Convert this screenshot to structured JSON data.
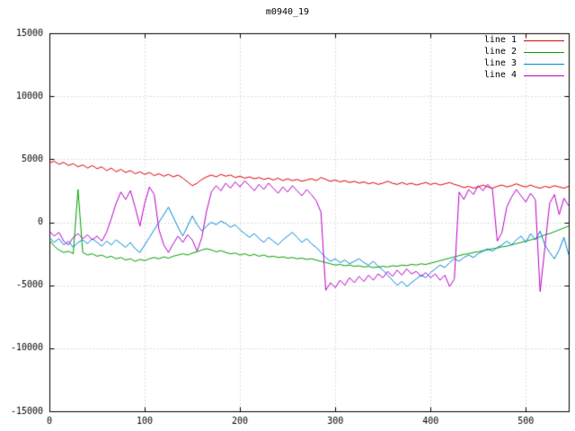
{
  "chart_data": {
    "type": "line",
    "title": "m0940_19",
    "xlabel": "",
    "ylabel": "",
    "xlim": [
      0,
      545
    ],
    "ylim": [
      -15000,
      15000
    ],
    "xticks": [
      0,
      100,
      200,
      300,
      400,
      500
    ],
    "yticks": [
      -15000,
      -10000,
      -5000,
      0,
      5000,
      10000,
      15000
    ],
    "grid": true,
    "grid_style": "dotted",
    "grid_color": "#b8b8b8",
    "border_color": "#000000",
    "background_color": "#ffffff",
    "legend_position": "top-right",
    "x_step": 5,
    "series": [
      {
        "name": "line 1",
        "color": "#dd0000",
        "values": [
          4700,
          4850,
          4600,
          4750,
          4500,
          4650,
          4400,
          4550,
          4300,
          4500,
          4250,
          4400,
          4100,
          4300,
          4000,
          4200,
          3950,
          4100,
          3850,
          4000,
          3800,
          3950,
          3700,
          3850,
          3650,
          3800,
          3600,
          3750,
          3500,
          3200,
          2900,
          3100,
          3400,
          3600,
          3750,
          3600,
          3800,
          3650,
          3750,
          3550,
          3650,
          3500,
          3600,
          3450,
          3550,
          3400,
          3500,
          3350,
          3500,
          3300,
          3450,
          3300,
          3400,
          3250,
          3350,
          3450,
          3300,
          3550,
          3400,
          3250,
          3350,
          3200,
          3300,
          3150,
          3250,
          3100,
          3200,
          3050,
          3150,
          3000,
          3100,
          3250,
          3100,
          3000,
          3150,
          3000,
          3100,
          2950,
          3050,
          3150,
          3000,
          3100,
          2950,
          3050,
          3150,
          3000,
          2900,
          2750,
          2850,
          2700,
          2800,
          2950,
          2800,
          2700,
          2850,
          2950,
          2800,
          2900,
          3050,
          2900,
          2800,
          2950,
          2800,
          2700,
          2850,
          2750,
          2900,
          2800,
          2700,
          2850
        ]
      },
      {
        "name": "line 2",
        "color": "#00a000",
        "values": [
          -1400,
          -1900,
          -2200,
          -2400,
          -2300,
          -2500,
          2600,
          -2400,
          -2600,
          -2500,
          -2700,
          -2600,
          -2800,
          -2700,
          -2900,
          -2800,
          -3000,
          -2900,
          -3100,
          -2950,
          -3050,
          -2900,
          -2800,
          -2900,
          -2750,
          -2850,
          -2700,
          -2600,
          -2500,
          -2600,
          -2450,
          -2350,
          -2200,
          -2100,
          -2200,
          -2350,
          -2250,
          -2400,
          -2500,
          -2450,
          -2600,
          -2500,
          -2650,
          -2550,
          -2700,
          -2600,
          -2750,
          -2700,
          -2800,
          -2750,
          -2850,
          -2800,
          -2900,
          -2850,
          -2950,
          -2900,
          -3000,
          -3100,
          -3200,
          -3300,
          -3400,
          -3350,
          -3450,
          -3400,
          -3500,
          -3450,
          -3550,
          -3500,
          -3600,
          -3550,
          -3500,
          -3550,
          -3450,
          -3500,
          -3400,
          -3450,
          -3350,
          -3400,
          -3300,
          -3350,
          -3250,
          -3150,
          -3050,
          -2950,
          -2850,
          -2750,
          -2650,
          -2550,
          -2500,
          -2400,
          -2350,
          -2250,
          -2200,
          -2100,
          -2050,
          -1950,
          -1900,
          -1800,
          -1700,
          -1600,
          -1500,
          -1400,
          -1300,
          -1150,
          -1000,
          -900,
          -750,
          -600,
          -450,
          -300
        ]
      },
      {
        "name": "line 3",
        "color": "#0088dd",
        "values": [
          -1200,
          -1600,
          -1300,
          -1800,
          -1500,
          -2000,
          -1600,
          -1400,
          -1700,
          -1300,
          -1600,
          -1900,
          -1500,
          -1800,
          -1400,
          -1700,
          -2000,
          -1600,
          -2100,
          -2400,
          -1800,
          -1200,
          -600,
          0,
          600,
          1200,
          400,
          -400,
          -1100,
          -300,
          500,
          -200,
          -700,
          -300,
          0,
          -200,
          100,
          -100,
          -400,
          -200,
          -600,
          -900,
          -1200,
          -900,
          -1300,
          -1600,
          -1200,
          -1500,
          -1800,
          -1400,
          -1100,
          -800,
          -1200,
          -1600,
          -1300,
          -1700,
          -2000,
          -2400,
          -2800,
          -3100,
          -2900,
          -3200,
          -3000,
          -3300,
          -3100,
          -2900,
          -3200,
          -3400,
          -3100,
          -3500,
          -3800,
          -4200,
          -4600,
          -5000,
          -4700,
          -5100,
          -4800,
          -4500,
          -4200,
          -4400,
          -4000,
          -3700,
          -3400,
          -3600,
          -3200,
          -2900,
          -3100,
          -2800,
          -2600,
          -2800,
          -2500,
          -2300,
          -2100,
          -2300,
          -2000,
          -1800,
          -1500,
          -1800,
          -1400,
          -1100,
          -1600,
          -900,
          -1400,
          -700,
          -1800,
          -2400,
          -2900,
          -2200,
          -1200,
          -2600
        ]
      },
      {
        "name": "line 4",
        "color": "#bb00cc",
        "values": [
          -700,
          -1100,
          -800,
          -1500,
          -1800,
          -1200,
          -900,
          -1300,
          -1000,
          -1400,
          -1100,
          -1500,
          -800,
          300,
          1500,
          2400,
          1800,
          2500,
          1200,
          -300,
          1500,
          2800,
          2200,
          -600,
          -1800,
          -2400,
          -1700,
          -1100,
          -1600,
          -1000,
          -1400,
          -2300,
          -1200,
          900,
          2400,
          2900,
          2500,
          3100,
          2700,
          3200,
          2800,
          3300,
          2900,
          2500,
          3000,
          2600,
          3100,
          2700,
          2300,
          2800,
          2400,
          2900,
          2500,
          2100,
          2600,
          2200,
          1700,
          800,
          -5400,
          -4800,
          -5200,
          -4600,
          -5000,
          -4400,
          -4800,
          -4300,
          -4700,
          -4200,
          -4600,
          -4100,
          -4400,
          -3900,
          -4300,
          -3800,
          -4200,
          -3700,
          -4100,
          -3900,
          -4300,
          -4000,
          -4400,
          -4100,
          -4600,
          -4200,
          -5100,
          -4500,
          2400,
          1800,
          2600,
          2200,
          2900,
          2500,
          3000,
          2600,
          -1500,
          -800,
          1200,
          2000,
          2600,
          2100,
          1600,
          2300,
          1800,
          -5500,
          -2000,
          1500,
          2200,
          600,
          1900,
          1300
        ]
      }
    ]
  }
}
